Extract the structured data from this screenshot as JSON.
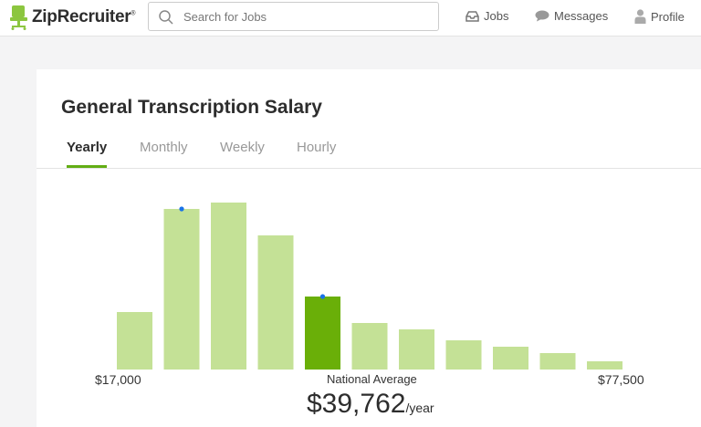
{
  "header": {
    "logo_text": "ZipRecruiter",
    "logo_reg": "®",
    "search_placeholder": "Search for Jobs",
    "nav": [
      {
        "label": "Jobs",
        "icon": "inbox-icon"
      },
      {
        "label": "Messages",
        "icon": "chat-bubble-icon"
      },
      {
        "label": "Profile",
        "icon": "person-icon"
      }
    ]
  },
  "page": {
    "title": "General Transcription Salary",
    "tabs": [
      {
        "label": "Yearly",
        "active": true
      },
      {
        "label": "Monthly",
        "active": false
      },
      {
        "label": "Weekly",
        "active": false
      },
      {
        "label": "Hourly",
        "active": false
      }
    ]
  },
  "chart_data": {
    "type": "bar",
    "title": "",
    "x_min_label": "$17,000",
    "x_max_label": "$77,500",
    "values": [
      63,
      176,
      183,
      147,
      80,
      51,
      44,
      32,
      25,
      18,
      9
    ],
    "highlight_index": 4,
    "marker_indices": [
      1,
      4
    ],
    "colors": {
      "bar": "#c4e196",
      "highlight": "#6aaf08",
      "marker": "#1a73e8"
    }
  },
  "summary": {
    "national_average_label": "National Average",
    "value": "$39,762",
    "unit": "/year"
  },
  "colors": {
    "accent": "#62ae14",
    "logo_green": "#8cc63f"
  }
}
